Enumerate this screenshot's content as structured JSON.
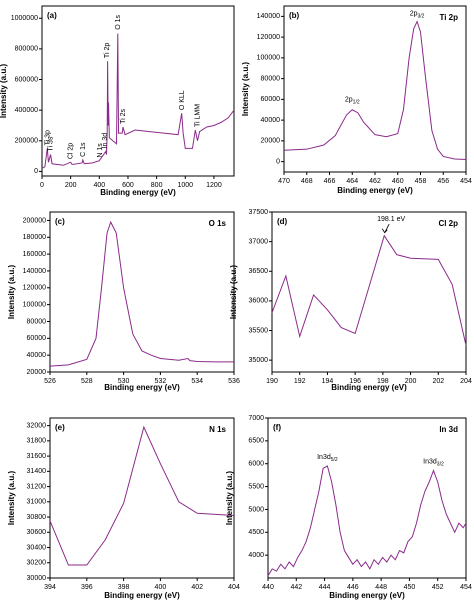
{
  "chart_data": [
    {
      "type": "line",
      "panel_label": "(a)",
      "title": null,
      "xlabel": "Binding energy (eV)",
      "ylabel": "Intensity (a.u.)",
      "color": "#8b2a8b",
      "x": [
        0,
        20,
        37,
        45,
        60,
        70,
        150,
        200,
        210,
        280,
        285,
        295,
        350,
        400,
        445,
        450,
        455,
        458,
        462,
        464,
        470,
        520,
        529,
        534,
        560,
        565,
        580,
        650,
        750,
        850,
        950,
        975,
        985,
        1000,
        1050,
        1070,
        1085,
        1100,
        1150,
        1200,
        1250,
        1300,
        1340
      ],
      "values": [
        20000,
        30000,
        150000,
        60000,
        110000,
        50000,
        40000,
        60000,
        45000,
        55000,
        75000,
        50000,
        55000,
        70000,
        130000,
        110000,
        250000,
        720000,
        300000,
        450000,
        220000,
        180000,
        900000,
        250000,
        250000,
        290000,
        240000,
        270000,
        260000,
        250000,
        240000,
        380000,
        250000,
        150000,
        150000,
        270000,
        200000,
        260000,
        290000,
        300000,
        320000,
        350000,
        400000
      ],
      "xlim": [
        0,
        1340
      ],
      "ylim": [
        -30000,
        1080000
      ],
      "xticks": [
        0,
        200,
        400,
        600,
        800,
        1000,
        1200
      ],
      "yticks": [
        0,
        200000,
        400000,
        600000,
        800000,
        1000000
      ],
      "annotations": [
        {
          "text": "O 1s"
        },
        {
          "text": "Ti 2p"
        },
        {
          "text": "Ti 2s"
        },
        {
          "text": "O KLL"
        },
        {
          "text": "Ti LMM"
        },
        {
          "text": "Cl 2p"
        },
        {
          "text": "C 1s"
        },
        {
          "text": "N 1s"
        },
        {
          "text": "In 3d"
        },
        {
          "text": "Ti 3p"
        },
        {
          "text": "Ti 3s"
        }
      ]
    },
    {
      "type": "line",
      "panel_label": "(b)",
      "title": "Ti 2p",
      "xlabel": "Binding energy (eV)",
      "ylabel": "Intensity (a.u.)",
      "color": "#8b2a8b",
      "x": [
        470,
        468,
        466.5,
        465.5,
        464.5,
        464,
        463.5,
        463,
        462,
        461,
        460,
        459.5,
        459,
        458.6,
        458.3,
        458,
        457.6,
        457,
        456.5,
        456,
        455,
        454
      ],
      "values": [
        11000,
        12000,
        16000,
        25000,
        45000,
        50000,
        47000,
        38000,
        26000,
        24000,
        27000,
        50000,
        100000,
        128000,
        135000,
        125000,
        85000,
        30000,
        12000,
        5000,
        2500,
        2000
      ],
      "xlim": [
        470,
        454
      ],
      "ylim": [
        -10000,
        150000
      ],
      "xticks": [
        470,
        468,
        466,
        464,
        462,
        460,
        458,
        456,
        454
      ],
      "yticks": [
        0,
        20000,
        40000,
        60000,
        80000,
        100000,
        120000,
        140000
      ],
      "annotations": [
        {
          "text": "2p",
          "sub": "1/2"
        },
        {
          "text": "2p",
          "sub": "3/2"
        }
      ]
    },
    {
      "type": "line",
      "panel_label": "(c)",
      "title": "O 1s",
      "xlabel": "Binding energy (eV)",
      "ylabel": "Intensity (a.u.)",
      "color": "#8b2a8b",
      "x": [
        526,
        527,
        528,
        528.5,
        528.8,
        529.1,
        529.3,
        529.6,
        530,
        530.5,
        531,
        531.5,
        532,
        533,
        533.5,
        533.6,
        534,
        535,
        536
      ],
      "values": [
        27000,
        28500,
        35000,
        60000,
        120000,
        185000,
        198000,
        185000,
        120000,
        65000,
        45000,
        40000,
        36000,
        34000,
        36000,
        33500,
        32500,
        32000,
        32000
      ],
      "xlim": [
        526,
        536
      ],
      "ylim": [
        20000,
        210000
      ],
      "xticks": [
        526,
        528,
        530,
        532,
        534,
        536
      ],
      "yticks": [
        20000,
        40000,
        60000,
        80000,
        100000,
        120000,
        140000,
        160000,
        180000,
        200000
      ],
      "annotations": []
    },
    {
      "type": "line",
      "panel_label": "(d)",
      "title": "Cl 2p",
      "xlabel": "Binding energy (eV)",
      "ylabel": "Intensity (a.u.)",
      "color": "#8b2a8b",
      "x": [
        190,
        191,
        192,
        193,
        194,
        195,
        196,
        198.1,
        199,
        200,
        202,
        203,
        204
      ],
      "values": [
        35800,
        36420,
        35400,
        36100,
        35850,
        35550,
        35450,
        37100,
        36780,
        36720,
        36700,
        36280,
        35250
      ],
      "xlim": [
        190,
        204
      ],
      "ylim": [
        34800,
        37500
      ],
      "xticks": [
        190,
        192,
        194,
        196,
        198,
        200,
        202,
        204
      ],
      "yticks": [
        35000,
        35500,
        36000,
        36500,
        37000,
        37500
      ],
      "annotations": [
        {
          "text": "198.1 eV"
        }
      ]
    },
    {
      "type": "line",
      "panel_label": "(e)",
      "title": "N 1s",
      "xlabel": "Binding energy (eV)",
      "ylabel": "Intensity (a.u.)",
      "color": "#8b2a8b",
      "x": [
        394,
        395,
        396,
        397,
        398,
        399.1,
        400,
        401,
        402,
        404
      ],
      "values": [
        30750,
        30170,
        30170,
        30500,
        30980,
        31980,
        31500,
        31000,
        30850,
        30820
      ],
      "xlim": [
        394,
        404
      ],
      "ylim": [
        30000,
        32100
      ],
      "xticks": [
        394,
        396,
        398,
        400,
        402,
        404
      ],
      "yticks": [
        30000,
        30200,
        30400,
        30600,
        30800,
        31000,
        31200,
        31400,
        31600,
        31800,
        32000
      ],
      "annotations": []
    },
    {
      "type": "line",
      "panel_label": "(f)",
      "title": "In 3d",
      "xlabel": "Binding energy (eV)",
      "ylabel": "Intensity (a.u.)",
      "color": "#8b2a8b",
      "x": [
        440,
        440.3,
        440.6,
        440.9,
        441.2,
        441.5,
        441.8,
        442.1,
        442.4,
        442.7,
        443,
        443.3,
        443.6,
        443.9,
        444.2,
        444.5,
        444.8,
        445.1,
        445.4,
        445.7,
        446,
        446.3,
        446.6,
        446.9,
        447.2,
        447.5,
        447.8,
        448.1,
        448.4,
        448.7,
        449,
        449.3,
        449.6,
        449.9,
        450.2,
        450.5,
        450.8,
        451.1,
        451.4,
        451.7,
        452,
        452.3,
        452.6,
        452.9,
        453.2,
        453.5,
        453.8,
        454
      ],
      "values": [
        3550,
        3700,
        3650,
        3800,
        3700,
        3850,
        3750,
        3950,
        4100,
        4300,
        4600,
        5000,
        5400,
        5900,
        5950,
        5600,
        5100,
        4500,
        4100,
        3950,
        3800,
        3900,
        3750,
        3850,
        3700,
        3900,
        3800,
        3950,
        3850,
        4000,
        3900,
        4100,
        4050,
        4300,
        4400,
        4700,
        5100,
        5400,
        5600,
        5850,
        5600,
        5200,
        4900,
        4700,
        4500,
        4700,
        4600,
        4700
      ],
      "xlim": [
        440,
        454
      ],
      "ylim": [
        3500,
        7000
      ],
      "xticks": [
        440,
        442,
        444,
        446,
        448,
        450,
        452,
        454
      ],
      "yticks": [
        4000,
        4500,
        5000,
        5500,
        6000,
        6500,
        7000
      ],
      "annotations": [
        {
          "text": "In3d",
          "sub": "5/2"
        },
        {
          "text": "In3d",
          "sub": "3/2"
        }
      ]
    }
  ]
}
